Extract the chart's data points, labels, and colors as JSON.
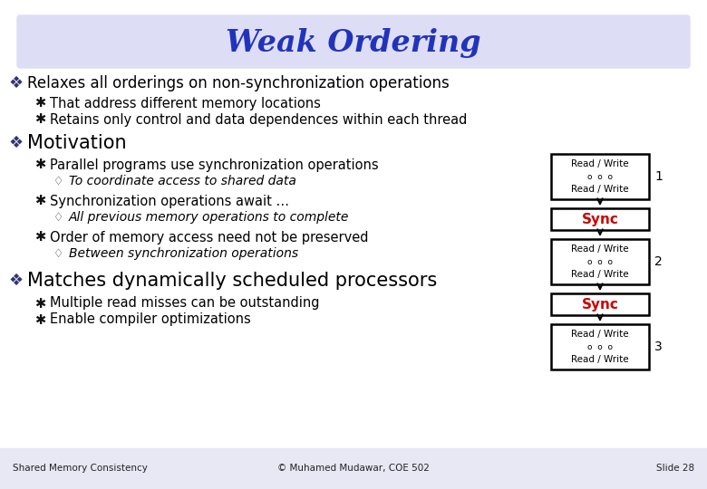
{
  "title": "Weak Ordering",
  "title_color": "#2233BB",
  "title_bg_color": "#DDDDF5",
  "bg_color": "#FFFFFF",
  "bullet1": "Relaxes all orderings on non-synchronization operations",
  "sub1a": "That address different memory locations",
  "sub1b": "Retains only control and data dependences within each thread",
  "bullet2": "Motivation",
  "sub2a": "Parallel programs use synchronization operations",
  "sub2a1": "To coordinate access to shared data",
  "sub2b": "Synchronization operations await …",
  "sub2b1": "All previous memory operations to complete",
  "sub2c": "Order of memory access need not be preserved",
  "sub2c1": "Between synchronization operations",
  "bullet3": "Matches dynamically scheduled processors",
  "sub3a": "Multiple read misses can be outstanding",
  "sub3b": "Enable compiler optimizations",
  "footer_left": "Shared Memory Consistency",
  "footer_center": "© Muhamed Mudawar, COE 502",
  "footer_right": "Slide 28",
  "text_color": "#000000",
  "sync_text_color": "#CC0000",
  "footer_bg_color": "#E8E8F5",
  "bullet_color": "#333377",
  "sub_bullet_color": "#000000"
}
